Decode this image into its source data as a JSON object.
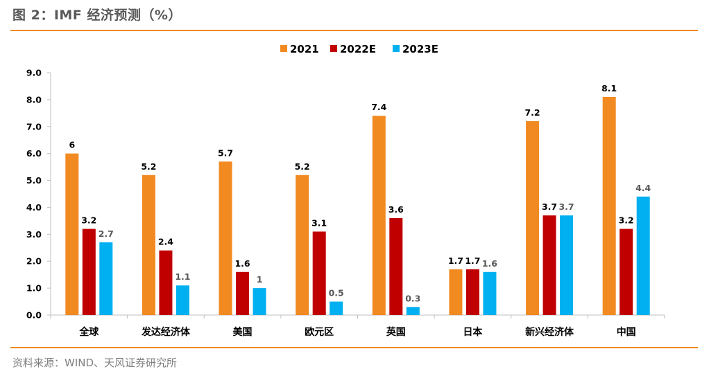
{
  "header": {
    "title": "图 2：IMF 经济预测（%）"
  },
  "footer": {
    "source": "资料来源：WIND、天风证券研究所"
  },
  "chart_data": {
    "type": "bar",
    "title": "",
    "xlabel": "",
    "ylabel": "",
    "categories": [
      "全球",
      "发达经济体",
      "美国",
      "欧元区",
      "英国",
      "日本",
      "新兴经济体",
      "中国"
    ],
    "series": [
      {
        "name": "2021",
        "color": "#f28a22",
        "values": [
          6,
          5.2,
          5.7,
          5.2,
          7.4,
          1.7,
          7.2,
          8.1
        ],
        "labels": [
          "6",
          "5.2",
          "5.7",
          "5.2",
          "7.4",
          "1.7",
          "7.2",
          "8.1"
        ],
        "label_color": "#000000"
      },
      {
        "name": "2022E",
        "color": "#c00000",
        "values": [
          3.2,
          2.4,
          1.6,
          3.1,
          3.6,
          1.7,
          3.7,
          3.2
        ],
        "labels": [
          "3.2",
          "2.4",
          "1.6",
          "3.1",
          "3.6",
          "1.7",
          "3.7",
          "3.2"
        ],
        "label_color": "#000000"
      },
      {
        "name": "2023E",
        "color": "#00b0f0",
        "values": [
          2.7,
          1.1,
          1,
          0.5,
          0.3,
          1.6,
          3.7,
          4.4
        ],
        "labels": [
          "2.7",
          "1.1",
          "1",
          "0.5",
          "0.3",
          "1.6",
          "3.7",
          "4.4"
        ],
        "label_color": "#595959"
      }
    ],
    "ylim": [
      0,
      9
    ],
    "yticks": [
      "0.0",
      "1.0",
      "2.0",
      "3.0",
      "4.0",
      "5.0",
      "6.0",
      "7.0",
      "8.0",
      "9.0"
    ],
    "grid": false,
    "legend_position": "top-center"
  }
}
